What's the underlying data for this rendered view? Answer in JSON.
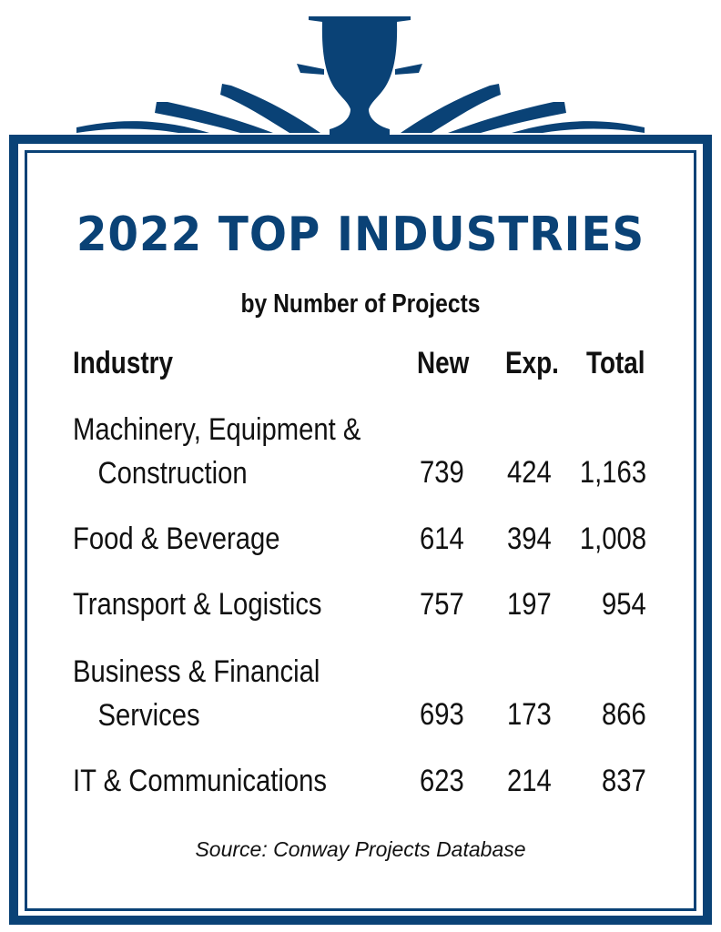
{
  "title": "2022 TOP INDUSTRIES",
  "subtitle": "by Number of Projects",
  "columns": [
    "Industry",
    "New",
    "Exp.",
    "Total"
  ],
  "rows": [
    {
      "industry_line1": "Machinery, Equipment &",
      "industry_line2": "Construction",
      "new": "739",
      "exp": "424",
      "total": "1,163"
    },
    {
      "industry_line1": "Food & Beverage",
      "industry_line2": "",
      "new": "614",
      "exp": "394",
      "total": "1,008"
    },
    {
      "industry_line1": "Transport & Logistics",
      "industry_line2": "",
      "new": "757",
      "exp": "197",
      "total": "954"
    },
    {
      "industry_line1": "Business & Financial",
      "industry_line2": "Services",
      "new": "693",
      "exp": "173",
      "total": "866"
    },
    {
      "industry_line1": "IT & Communications",
      "industry_line2": "",
      "new": "623",
      "exp": "214",
      "total": "837"
    }
  ],
  "source": "Source: Conway Projects Database",
  "colors": {
    "accent": "#0a4276",
    "text": "#111111",
    "background": "#ffffff"
  }
}
